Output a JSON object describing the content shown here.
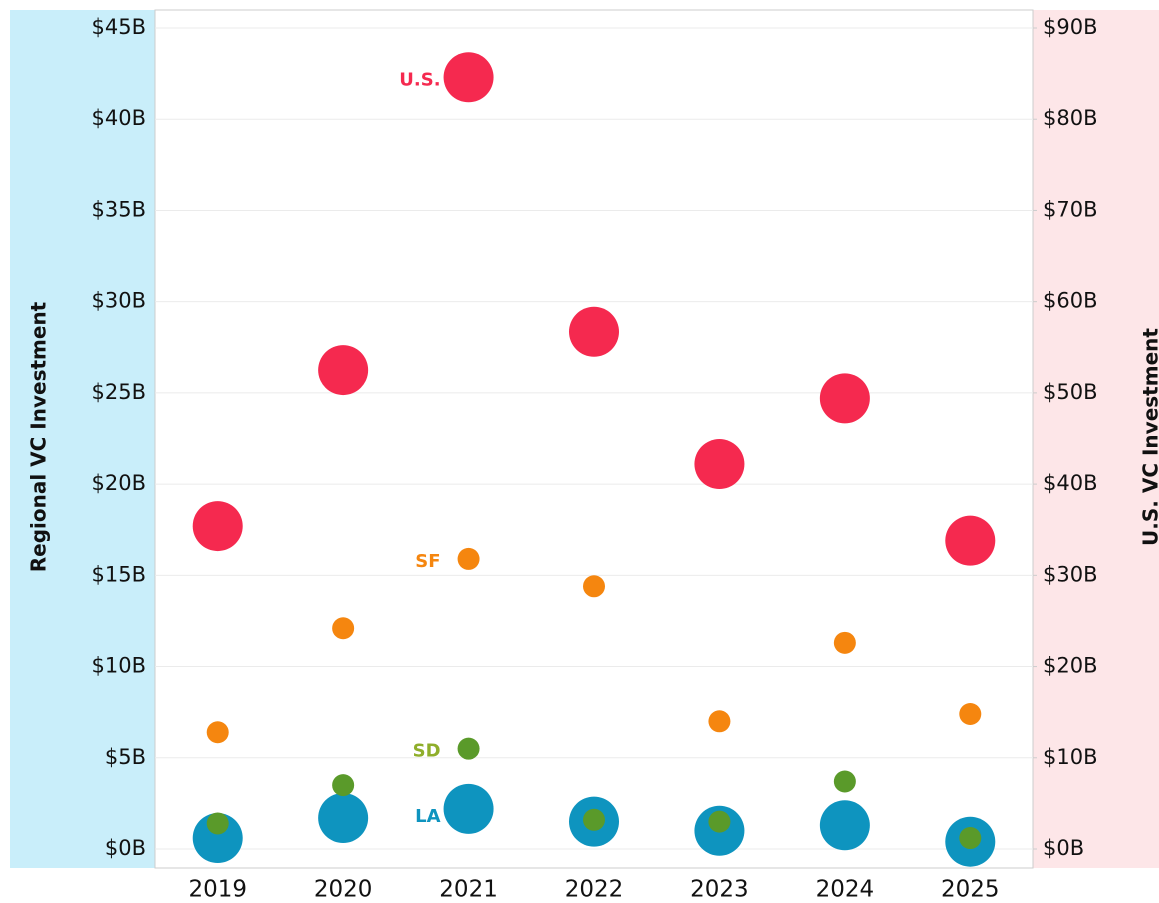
{
  "chart_data": {
    "type": "scatter",
    "ylabel": "Regional VC Investment",
    "y2label": "U.S. VC Investment",
    "categories": [
      "2019",
      "2020",
      "2021",
      "2022",
      "2023",
      "2024",
      "2025"
    ],
    "series": [
      {
        "name": "U.S.",
        "color": "#f5294f",
        "axis": "y2",
        "values": [
          35.4,
          52.5,
          84.6,
          56.7,
          42.2,
          49.4,
          33.8
        ]
      },
      {
        "name": "SF",
        "color": "#f5860f",
        "values": [
          6.4,
          12.1,
          15.9,
          14.4,
          7.0,
          11.3,
          7.4
        ]
      },
      {
        "name": "SD",
        "color": "#5a9a2a",
        "values": [
          1.4,
          3.5,
          5.5,
          1.6,
          1.5,
          3.7,
          0.6
        ]
      },
      {
        "name": "LA",
        "color": "#0e94bf",
        "values": [
          0.6,
          1.7,
          2.2,
          1.5,
          1.0,
          1.3,
          0.4
        ]
      }
    ],
    "ylim": [
      0,
      45
    ],
    "yticks": [
      {
        "value": 0,
        "label": "$0B"
      },
      {
        "value": 5,
        "label": "$5B"
      },
      {
        "value": 10,
        "label": "$10B"
      },
      {
        "value": 15,
        "label": "$15B"
      },
      {
        "value": 20,
        "label": "$20B"
      },
      {
        "value": 25,
        "label": "$25B"
      },
      {
        "value": 30,
        "label": "$30B"
      },
      {
        "value": 35,
        "label": "$35B"
      },
      {
        "value": 40,
        "label": "$40B"
      },
      {
        "value": 45,
        "label": "$45B"
      }
    ],
    "y2lim": [
      0,
      90
    ],
    "y2ticks": [
      {
        "value": 0,
        "label": "$0B"
      },
      {
        "value": 10,
        "label": "$10B"
      },
      {
        "value": 20,
        "label": "$20B"
      },
      {
        "value": 30,
        "label": "$30B"
      },
      {
        "value": 40,
        "label": "$40B"
      },
      {
        "value": 50,
        "label": "$50B"
      },
      {
        "value": 60,
        "label": "$60B"
      },
      {
        "value": 70,
        "label": "$70B"
      },
      {
        "value": 80,
        "label": "$80B"
      },
      {
        "value": 90,
        "label": "$90B"
      }
    ],
    "grid": true
  }
}
